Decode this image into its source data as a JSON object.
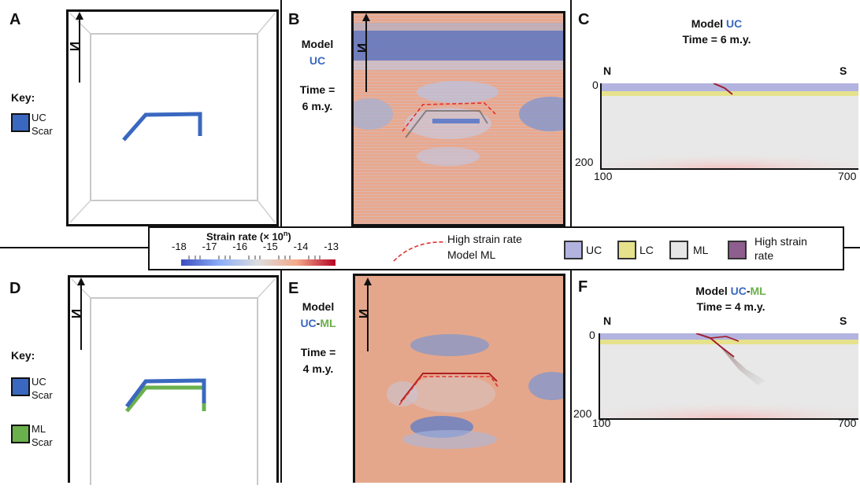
{
  "panels": {
    "A": {
      "letter": "A"
    },
    "B": {
      "letter": "B",
      "model_word": "Model",
      "model_name": "UC",
      "time_line1": "Time =",
      "time_line2": "6 m.y."
    },
    "C": {
      "letter": "C",
      "title_prefix": "Model ",
      "title_model": "UC",
      "time": "Time = 6 m.y.",
      "north": "N",
      "south": "S",
      "depth_top": "0",
      "depth_bottom": "200",
      "x_left": "100",
      "x_right": "700"
    },
    "D": {
      "letter": "D"
    },
    "E": {
      "letter": "E",
      "model_word": "Model",
      "model_name_uc": "UC",
      "model_name_dash": "-",
      "model_name_ml": "ML",
      "time_line1": "Time =",
      "time_line2": "4 m.y."
    },
    "F": {
      "letter": "F",
      "title_prefix": "Model ",
      "title_uc": "UC",
      "title_dash": "-",
      "title_ml": "ML",
      "time": "Time = 4 m.y.",
      "north": "N",
      "south": "S",
      "depth_top": "0",
      "depth_bottom": "200",
      "x_left": "100",
      "x_right": "700"
    }
  },
  "north_arrow_label": "N",
  "key_top": {
    "title": "Key:",
    "items": [
      {
        "label_line1": "UC",
        "label_line2": "Scar",
        "color": "#3a68c0"
      }
    ]
  },
  "key_bottom": {
    "title": "Key:",
    "items": [
      {
        "label_line1": "UC",
        "label_line2": "Scar",
        "color": "#3a68c0"
      },
      {
        "label_line1": "ML",
        "label_line2": "Scar",
        "color": "#6ab04c"
      }
    ]
  },
  "legend": {
    "colorbar_title": "Strain rate (× 10",
    "colorbar_sup": "n",
    "colorbar_title_end": ")",
    "ticks": [
      "-18",
      "-17",
      "-16",
      "-15",
      "-14",
      "-13"
    ],
    "dashed_label_line1": "High strain rate",
    "dashed_label_line2": "Model ML",
    "layers": [
      {
        "label": "UC",
        "color": "#b3b3e0"
      },
      {
        "label": "LC",
        "color": "#e6e28c"
      },
      {
        "label": "ML",
        "color": "#e6e6e6"
      },
      {
        "label_line1": "High strain",
        "label_line2": "rate",
        "color": "#8e5e8e"
      }
    ]
  },
  "colors": {
    "uc_blue": "#3a68c0",
    "ml_green": "#6ab04c",
    "dashed_red": "#e03030",
    "strain_bg": "#e8a68a"
  }
}
